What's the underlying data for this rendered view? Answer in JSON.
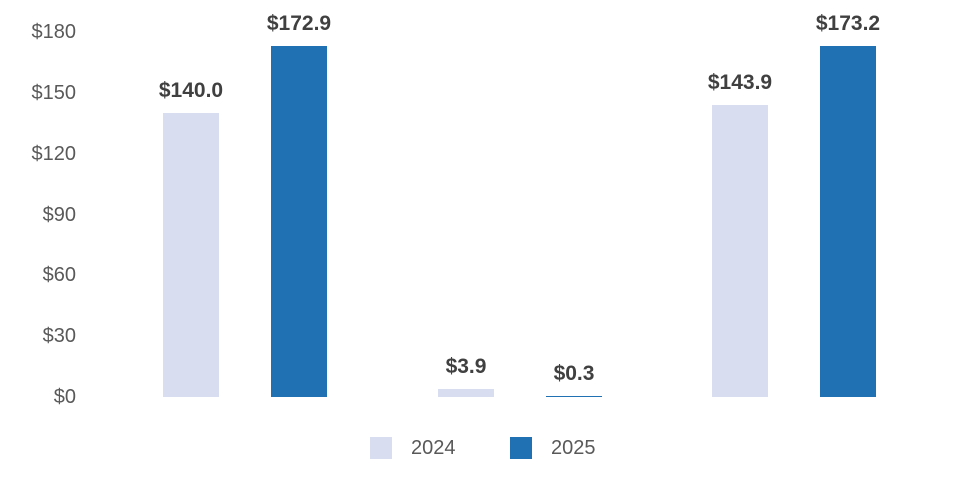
{
  "chart_data": {
    "type": "bar",
    "title": "",
    "xlabel": "",
    "ylabel": "",
    "ylim": [
      0,
      180
    ],
    "grid": false,
    "axis_line": false,
    "currency_format": true,
    "y_axis": {
      "tick_values": [
        0,
        30,
        60,
        90,
        120,
        150,
        180
      ],
      "tick_labels": [
        "$0",
        "$30",
        "$60",
        "$90",
        "$120",
        "$150",
        "$180"
      ]
    },
    "groups": 3,
    "series": [
      {
        "name": "2024",
        "color": "#d8def0",
        "values": [
          140.0,
          3.9,
          143.9
        ],
        "data_labels": [
          "$140.0",
          "$3.9",
          "$143.9"
        ]
      },
      {
        "name": "2025",
        "color": "#2070b4",
        "values": [
          172.9,
          0.3,
          173.2
        ],
        "data_labels": [
          "$172.9",
          "$0.3",
          "$173.2"
        ]
      }
    ],
    "legend": {
      "position": "bottom-center",
      "items": [
        {
          "label": "2024",
          "color": "#d8def0"
        },
        {
          "label": "2025",
          "color": "#2070b4"
        }
      ]
    }
  },
  "colors": {
    "background": "#ffffff",
    "axis_text": "#595959",
    "data_label_text": "#404040",
    "series_2024": "#d8def0",
    "series_2025": "#2070b4"
  }
}
